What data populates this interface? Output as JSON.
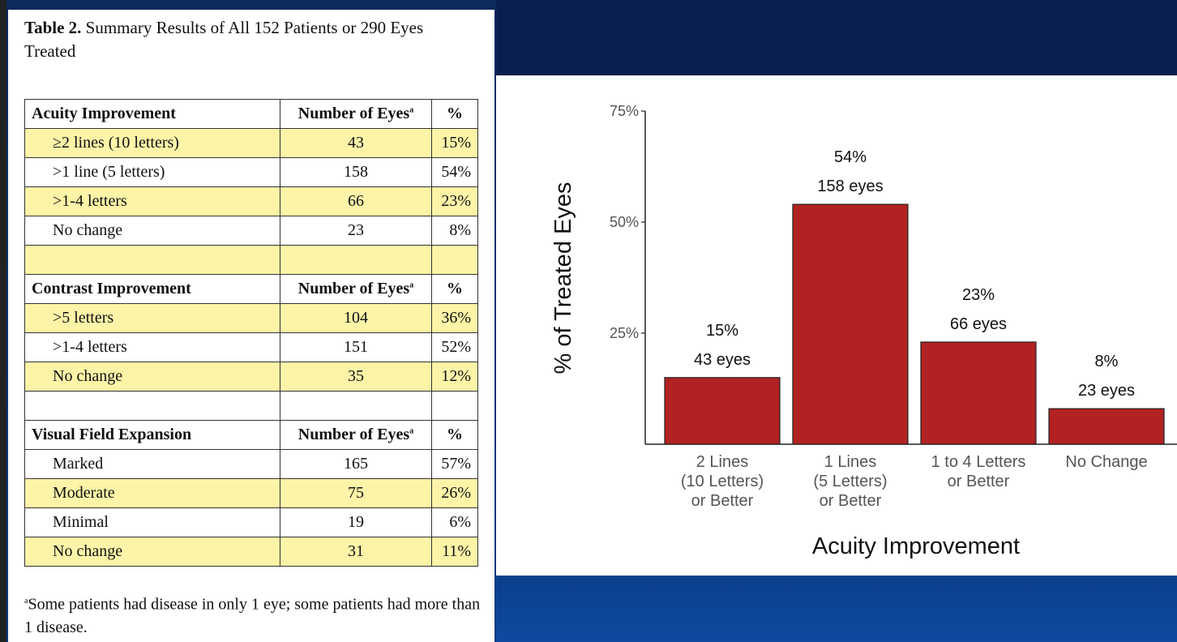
{
  "table": {
    "title_bold": "Table 2.",
    "title_rest": " Summary Results of All 152 Patients or 290 Eyes Treated",
    "sections": [
      {
        "header": "Acuity Improvement",
        "col_count": "Number of Eyes",
        "col_count_sup": "a",
        "col_pct": "%",
        "rows": [
          {
            "label": "≥2 lines (10 letters)",
            "count": "43",
            "pct": "15%"
          },
          {
            "label": ">1 line (5 letters)",
            "count": "158",
            "pct": "54%"
          },
          {
            "label": ">1-4 letters",
            "count": "66",
            "pct": "23%"
          },
          {
            "label": "No change",
            "count": "23",
            "pct": "8%"
          }
        ]
      },
      {
        "header": "Contrast Improvement",
        "col_count": "Number of Eyes",
        "col_count_sup": "a",
        "col_pct": "%",
        "rows": [
          {
            "label": ">5 letters",
            "count": "104",
            "pct": "36%"
          },
          {
            "label": ">1-4 letters",
            "count": "151",
            "pct": "52%"
          },
          {
            "label": "No change",
            "count": "35",
            "pct": "12%"
          }
        ]
      },
      {
        "header": "Visual Field Expansion",
        "col_count": "Number of Eyes",
        "col_count_sup": "a",
        "col_pct": "%",
        "rows": [
          {
            "label": "Marked",
            "count": "165",
            "pct": "57%"
          },
          {
            "label": "Moderate",
            "count": "75",
            "pct": "26%"
          },
          {
            "label": "Minimal",
            "count": "19",
            "pct": "6%"
          },
          {
            "label": "No change",
            "count": "31",
            "pct": "11%"
          }
        ]
      }
    ],
    "footnote_sup": "a",
    "footnote": "Some patients had disease in only 1 eye; some patients had more than 1 disease."
  },
  "chart_data": {
    "type": "bar",
    "title": "",
    "xlabel": "Acuity Improvement",
    "ylabel": "% of Treated Eyes",
    "ylim": [
      0,
      75
    ],
    "yticks": [
      25,
      50,
      75
    ],
    "ytick_labels": [
      "25%",
      "50%",
      "75%"
    ],
    "categories": [
      [
        "2 Lines",
        "(10 Letters)",
        "or Better"
      ],
      [
        "1 Lines",
        "(5 Letters)",
        "or Better"
      ],
      [
        "1 to 4 Letters",
        "or Better"
      ],
      [
        "No Change"
      ]
    ],
    "values": [
      15,
      54,
      23,
      8
    ],
    "value_labels": [
      "15%",
      "54%",
      "23%",
      "8%"
    ],
    "eye_labels": [
      "43 eyes",
      "158 eyes",
      "66 eyes",
      "23 eyes"
    ],
    "bar_color": "#b22222",
    "grid": false
  }
}
